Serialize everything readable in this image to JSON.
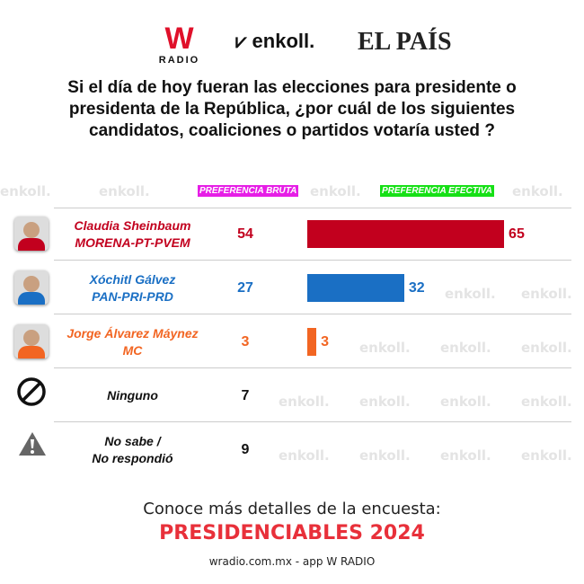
{
  "logos": {
    "wradio": "W",
    "wradio_sub": "RADIO",
    "enkoll": "enkoll.",
    "elpais": "EL PAÍS"
  },
  "watermark": "enkoll.",
  "question": "Si el día de hoy fueran las elecciones para presidente o presidenta de la República, ¿por cuál de los siguientes candidatos, coaliciones o partidos votaría usted ?",
  "headers": {
    "bruta": "PREFERENCIA BRUTA",
    "efectiva": "PREFERENCIA EFECTIVA"
  },
  "colors": {
    "morena": "#c2001e",
    "pan": "#1a6fc4",
    "mc": "#f26522",
    "bruta_bg": "#e61ee6",
    "efectiva_bg": "#16e016"
  },
  "rows": [
    {
      "name": "Claudia Sheinbaum",
      "party": "MORENA-PT-PVEM",
      "bruta": "54",
      "efectiva": 65,
      "color": "#c2001e",
      "icon": "candidate-photo"
    },
    {
      "name": "Xóchitl Gálvez",
      "party": "PAN-PRI-PRD",
      "bruta": "27",
      "efectiva": 32,
      "color": "#1a6fc4",
      "icon": "candidate-photo"
    },
    {
      "name": "Jorge Álvarez Máynez",
      "party": "MC",
      "bruta": "3",
      "efectiva": 3,
      "color": "#f26522",
      "icon": "candidate-photo"
    },
    {
      "name": "Ninguno",
      "party": "",
      "bruta": "7",
      "color": "#111",
      "icon": "prohibited-icon"
    },
    {
      "name": "No sabe /",
      "party": "No respondió",
      "bruta": "9",
      "color": "#111",
      "icon": "question-triangle-icon"
    }
  ],
  "footer": {
    "cta": "Conoce más detalles de la encuesta:",
    "title": "PRESIDENCIABLES 2024",
    "site": "wradio.com.mx - app W RADIO"
  }
}
